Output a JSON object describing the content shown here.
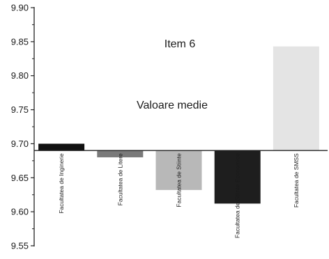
{
  "chart_data": {
    "type": "bar",
    "baseline": 9.69,
    "ylim": [
      9.55,
      9.9
    ],
    "yticks": [
      "9.55",
      "9.60",
      "9.65",
      "9.70",
      "9.75",
      "9.80",
      "9.85",
      "9.90"
    ],
    "ytick_values": [
      9.55,
      9.6,
      9.65,
      9.7,
      9.75,
      9.8,
      9.85,
      9.9
    ],
    "categories": [
      "Facultatea de Inginerie",
      "Facultatea de Litere",
      "Facultatea de Stiinte",
      "Facultatea de Stiinte Economice",
      "Facultatea de SMSS"
    ],
    "values": [
      9.7,
      9.68,
      9.632,
      9.612,
      9.843
    ],
    "bar_colors": [
      "#111111",
      "#7a7a7a",
      "#b8b8b8",
      "#1e1e1e",
      "#e4e4e4"
    ],
    "annotations": [
      "Item 6",
      "Valoare medie"
    ],
    "grid": false,
    "title": "",
    "xlabel": "",
    "ylabel": ""
  }
}
